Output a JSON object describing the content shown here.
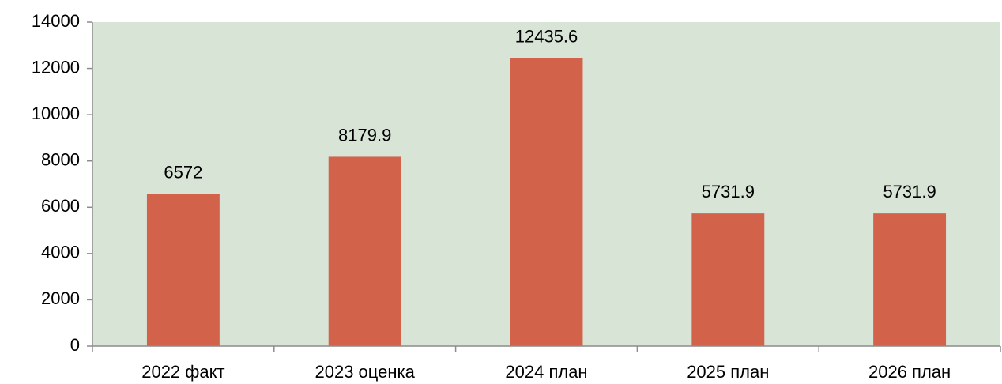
{
  "chart_data": {
    "type": "bar",
    "categories": [
      "2022 факт",
      "2023 оценка",
      "2024 план",
      "2025 план",
      "2026 план"
    ],
    "values": [
      6572,
      8179.9,
      12435.6,
      5731.9,
      5731.9
    ],
    "color": "#d2634a",
    "plot_background": "#d8e4d6",
    "ylim": [
      0,
      14000
    ],
    "yticks": [
      0,
      2000,
      4000,
      6000,
      8000,
      10000,
      12000,
      14000
    ],
    "grid": false,
    "data_labels": true
  }
}
